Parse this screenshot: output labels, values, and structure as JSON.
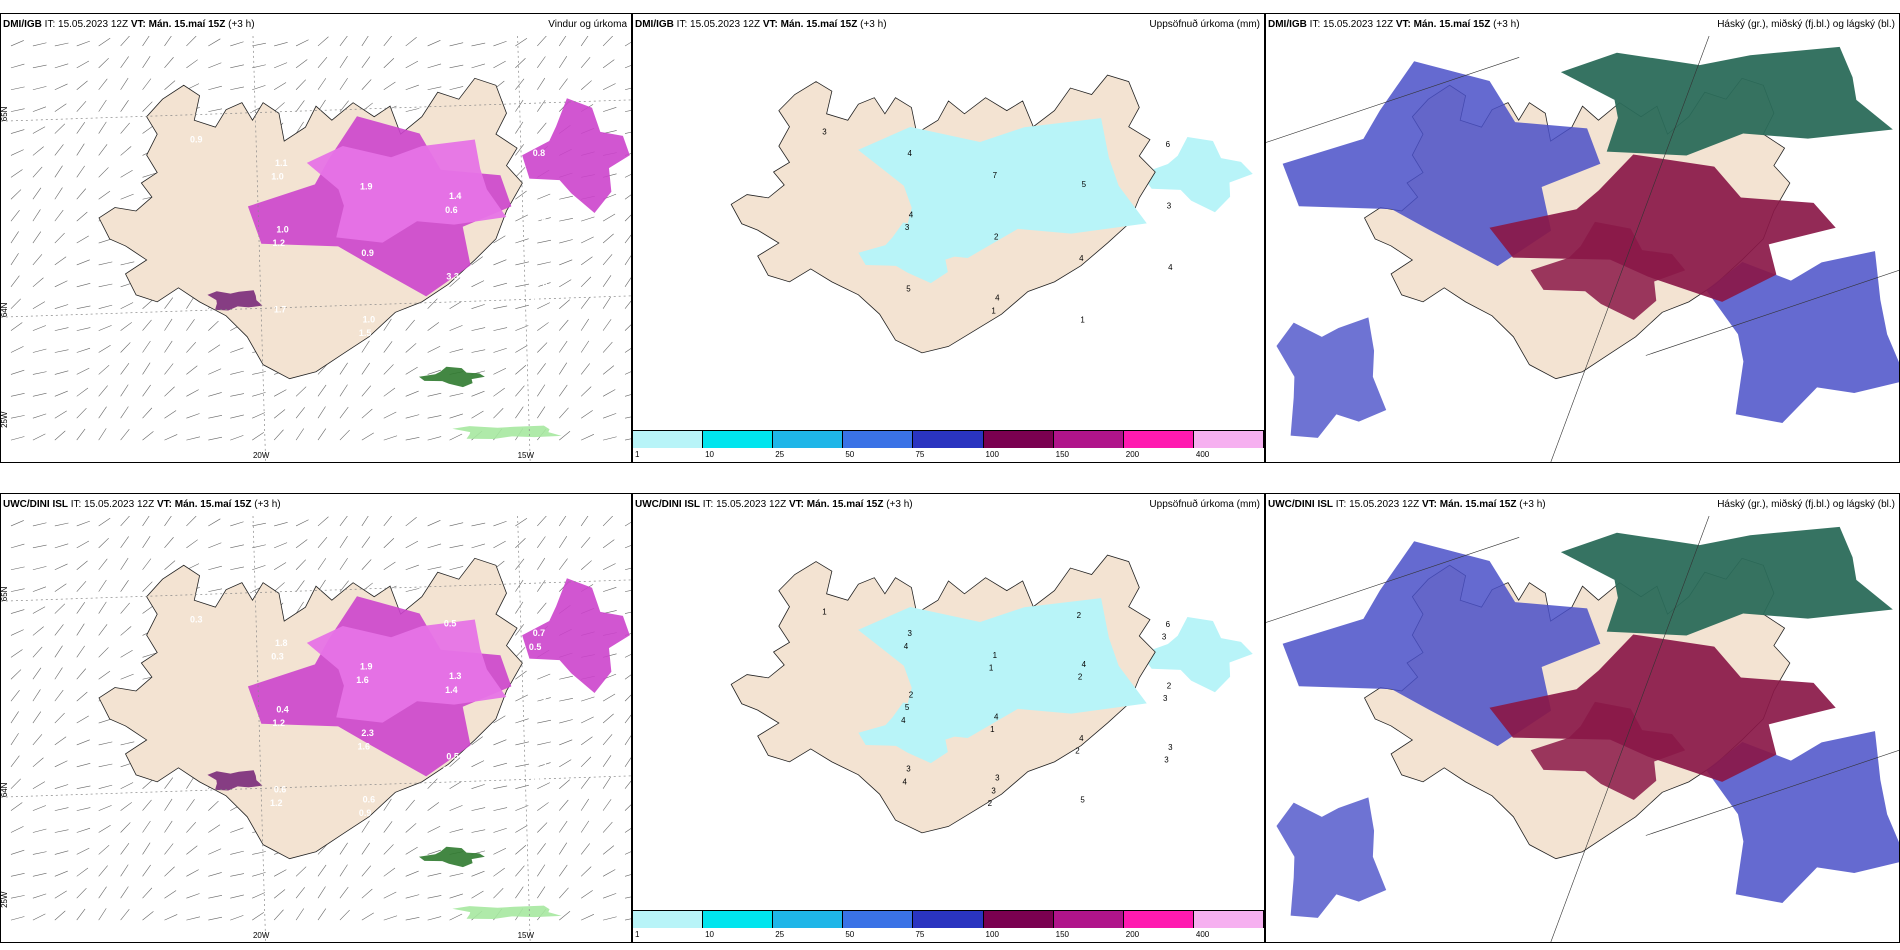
{
  "panels": [
    {
      "id": "p1",
      "model": "DMI/IGB",
      "it": "IT: 15.05.2023 12Z",
      "vt_label": "VT:",
      "vt": "Mán. 15.maí 15Z",
      "lead": "(+3 h)",
      "title": "Vindur og úrkoma",
      "grid_labels": {
        "lat_top": "65N",
        "lat_mid": "64N",
        "lon_left": "25W",
        "lon_a": "20W",
        "lon_b": "15W"
      },
      "values": [
        "0.9",
        "1.0",
        "1.0",
        "1.4",
        "2.0",
        "1.1",
        "0.9",
        "0.4",
        "0.8",
        "1.7",
        "1.9",
        "3.3",
        "0.8",
        "1.2",
        "1.5",
        "0.6",
        "0.3",
        "1.0"
      ]
    },
    {
      "id": "p2",
      "model": "DMI/IGB",
      "it": "IT: 15.05.2023 12Z",
      "vt_label": "VT:",
      "vt": "Mán. 15.maí 15Z",
      "lead": "(+3 h)",
      "title": "Uppsöfnuð úrkoma (mm)",
      "values": [
        "3",
        "4",
        "4",
        "5",
        "4",
        "4",
        "2",
        "1",
        "3",
        "5",
        "7",
        "4",
        "6",
        "3",
        "1"
      ]
    },
    {
      "id": "p3",
      "model": "DMI/IGB",
      "it": "IT: 15.05.2023 12Z",
      "vt_label": "VT:",
      "vt": "Mán. 15.maí 15Z",
      "lead": "(+3 h)",
      "title": "Háský (gr.), miðský (fj.bl.) og lágský (bl.)"
    },
    {
      "id": "p4",
      "model": "UWC/DINI ISL",
      "it": "IT: 15.05.2023 12Z",
      "vt_label": "VT:",
      "vt": "Mán. 15.maí 15Z",
      "lead": "(+3 h)",
      "title": "",
      "grid_labels": {
        "lat_top": "65N",
        "lat_mid": "64N",
        "lon_left": "25W",
        "lon_a": "20W",
        "lon_b": "15W"
      },
      "values": [
        "0.3",
        "0.4",
        "0.6",
        "1.3",
        "1.1",
        "1.8",
        "2.3",
        "2.1",
        "1.2",
        "0.6",
        "1.9",
        "0.5",
        "0.7",
        "1.2",
        "0.9",
        "1.4",
        "0.8",
        "0.3",
        "1.6",
        "0.5",
        "0.7",
        "1.2",
        "1.6",
        "1.0",
        "0.5"
      ]
    },
    {
      "id": "p5",
      "model": "UWC/DINI ISL",
      "it": "IT: 15.05.2023 12Z",
      "vt_label": "VT:",
      "vt": "Mán. 15.maí 15Z",
      "lead": "(+3 h)",
      "title": "Uppsöfnuð úrkoma (mm)",
      "values": [
        "1",
        "2",
        "3",
        "4",
        "3",
        "3",
        "4",
        "5",
        "2",
        "3",
        "1",
        "4",
        "6",
        "5",
        "3",
        "2",
        "3",
        "4",
        "1",
        "2",
        "3",
        "4",
        "1",
        "2",
        "3",
        "4",
        "2"
      ]
    },
    {
      "id": "p6",
      "model": "UWC/DINI ISL",
      "it": "IT: 15.05.2023 12Z",
      "vt_label": "VT:",
      "vt": "Mán. 15.maí 15Z",
      "lead": "(+3 h)",
      "title": "Háský (gr.), miðský (fj.bl.) og lágský (bl.)"
    }
  ],
  "colorbar": {
    "ticks": [
      "1",
      "10",
      "25",
      "50",
      "75",
      "100",
      "150",
      "200",
      "400"
    ],
    "colors": [
      "#b8f4f8",
      "#00e5ee",
      "#1fb6e8",
      "#3a72e6",
      "#2a34c0",
      "#7a0050",
      "#b0148a",
      "#ff1ab0",
      "#f6b0f0"
    ]
  },
  "colors": {
    "land": "#f3e3d2",
    "coast": "#222222",
    "precip_light": "#e673e6",
    "precip_mid": "#cc44cc",
    "precip_dark": "#7a2a7a",
    "cyan": "#b8f4f8",
    "high_cloud": "#2b6b5a",
    "mid_cloud": "#8a1848",
    "low_cloud": "#4a50c8",
    "green_fringe": "#a6e8a0"
  }
}
